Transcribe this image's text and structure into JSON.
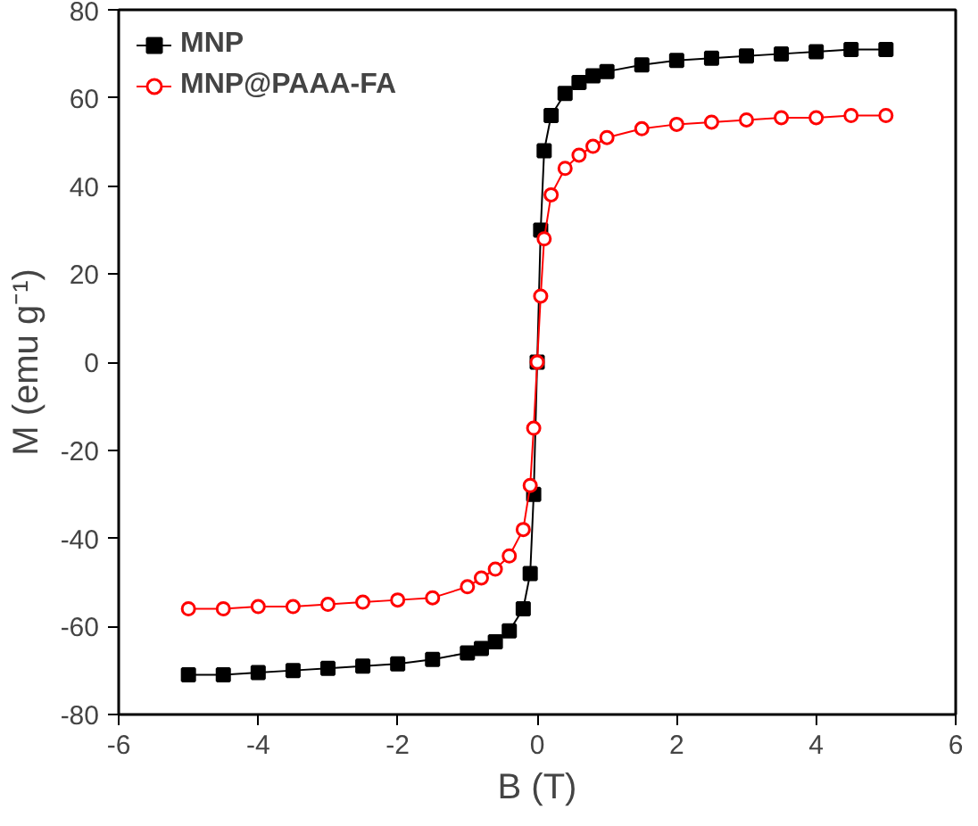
{
  "chart_data": {
    "type": "line",
    "xlabel": "B (T)",
    "ylabel": "M (emu g⁻¹)",
    "xlim": [
      -6,
      6
    ],
    "ylim": [
      -80,
      80
    ],
    "xticks": [
      -6,
      -4,
      -2,
      0,
      2,
      4,
      6
    ],
    "yticks": [
      -80,
      -60,
      -40,
      -20,
      0,
      20,
      40,
      60,
      80
    ],
    "grid": false,
    "legend": "top left",
    "line_style": "solid",
    "series": [
      {
        "name": "MNP",
        "color": "#000000",
        "marker": "square",
        "x": [
          -5,
          -4.5,
          -4,
          -3.5,
          -3,
          -2.5,
          -2,
          -1.5,
          -1,
          -0.8,
          -0.6,
          -0.4,
          -0.2,
          -0.1,
          -0.05,
          0,
          0.05,
          0.1,
          0.2,
          0.4,
          0.6,
          0.8,
          1,
          1.5,
          2,
          2.5,
          3,
          3.5,
          4,
          4.5,
          5
        ],
        "values": [
          -71,
          -71,
          -70.5,
          -70,
          -69.5,
          -69,
          -68.5,
          -67.5,
          -66,
          -65,
          -63.5,
          -61,
          -56,
          -48,
          -30,
          0,
          30,
          48,
          56,
          61,
          63.5,
          65,
          66,
          67.5,
          68.5,
          69,
          69.5,
          70,
          70.5,
          71,
          71
        ]
      },
      {
        "name": "MNP@PAAA-FA",
        "color": "#ff0000",
        "marker": "circle",
        "x": [
          -5,
          -4.5,
          -4,
          -3.5,
          -3,
          -2.5,
          -2,
          -1.5,
          -1,
          -0.8,
          -0.6,
          -0.4,
          -0.2,
          -0.1,
          -0.05,
          0,
          0.05,
          0.1,
          0.2,
          0.4,
          0.6,
          0.8,
          1,
          1.5,
          2,
          2.5,
          3,
          3.5,
          4,
          4.5,
          5
        ],
        "values": [
          -56,
          -56,
          -55.5,
          -55.5,
          -55,
          -54.5,
          -54,
          -53.5,
          -51,
          -49,
          -47,
          -44,
          -38,
          -28,
          -15,
          0,
          15,
          28,
          38,
          44,
          47,
          49,
          51,
          53,
          54,
          54.5,
          55,
          55.5,
          55.5,
          56,
          56
        ]
      }
    ]
  }
}
